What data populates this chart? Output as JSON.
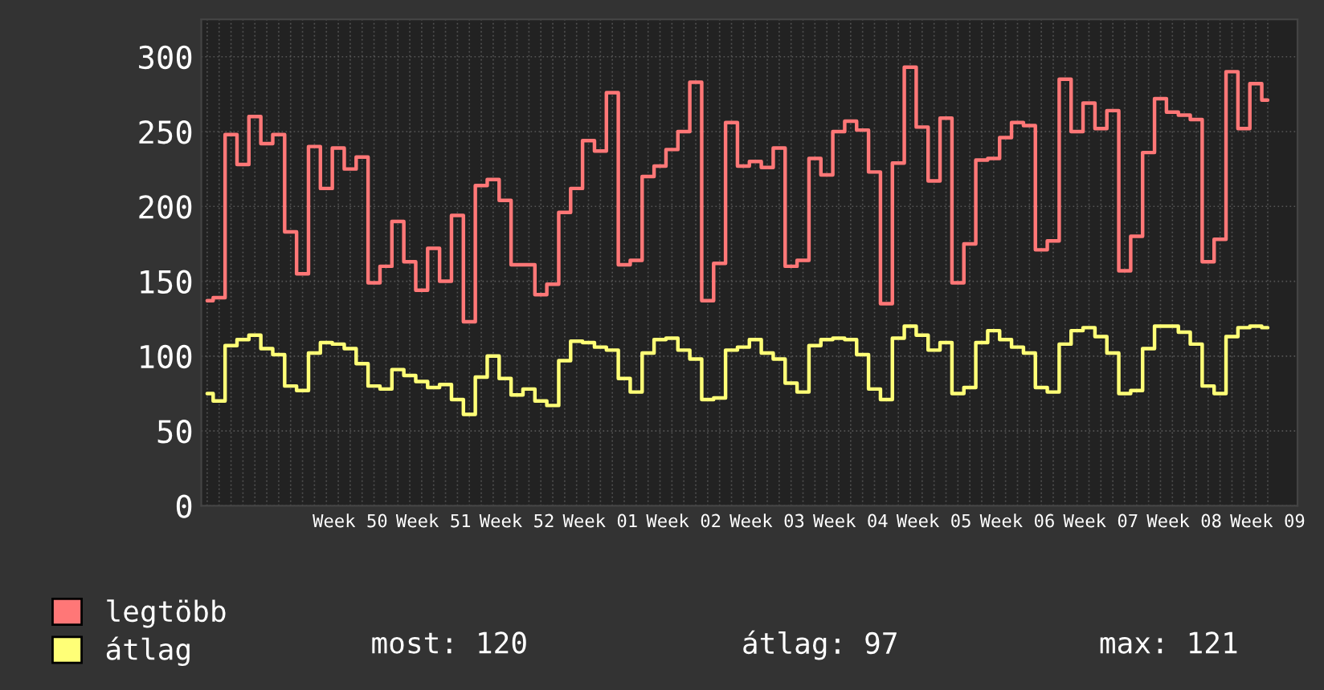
{
  "chart_data": {
    "type": "step",
    "categories": [
      null,
      null,
      null,
      null,
      null,
      null,
      null,
      null,
      null,
      null,
      null,
      null,
      "Week 50",
      null,
      null,
      null,
      null,
      null,
      null,
      "Week 51",
      null,
      null,
      null,
      null,
      null,
      null,
      "Week 52",
      null,
      null,
      null,
      null,
      null,
      null,
      "Week 01",
      null,
      null,
      null,
      null,
      null,
      null,
      "Week 02",
      null,
      null,
      null,
      null,
      null,
      null,
      "Week 03",
      null,
      null,
      null,
      null,
      null,
      null,
      "Week 04",
      null,
      null,
      null,
      null,
      null,
      null,
      "Week 05",
      null,
      null,
      null,
      null,
      null,
      null,
      "Week 06",
      null,
      null,
      null,
      null,
      null,
      null,
      "Week 07",
      null,
      null,
      null,
      null,
      null,
      null,
      "Week 08",
      null,
      null,
      null,
      null,
      null,
      null,
      "Week 09"
    ],
    "series": [
      {
        "name": "legtöbb",
        "color": "#ff7777",
        "values": [
          137,
          139,
          248,
          228,
          260,
          242,
          248,
          183,
          155,
          240,
          212,
          239,
          225,
          233,
          149,
          160,
          190,
          163,
          144,
          172,
          150,
          194,
          123,
          214,
          218,
          204,
          161,
          161,
          141,
          148,
          196,
          212,
          244,
          237,
          276,
          161,
          164,
          220,
          227,
          238,
          250,
          283,
          137,
          162,
          256,
          227,
          230,
          226,
          239,
          160,
          164,
          232,
          221,
          250,
          257,
          251,
          223,
          135,
          229,
          293,
          253,
          217,
          259,
          149,
          175,
          231,
          232,
          246,
          256,
          254,
          171,
          177,
          285,
          250,
          269,
          252,
          264,
          157,
          180,
          236,
          272,
          263,
          261,
          258,
          163,
          178,
          290,
          252,
          282,
          271
        ]
      },
      {
        "name": "átlag",
        "color": "#ffff77",
        "values": [
          75,
          70,
          107,
          111,
          114,
          105,
          101,
          80,
          77,
          102,
          109,
          108,
          105,
          95,
          80,
          78,
          91,
          87,
          83,
          79,
          81,
          71,
          61,
          86,
          100,
          85,
          74,
          78,
          70,
          67,
          97,
          110,
          109,
          106,
          104,
          85,
          76,
          102,
          111,
          112,
          104,
          98,
          71,
          72,
          104,
          106,
          111,
          102,
          98,
          82,
          76,
          107,
          111,
          112,
          111,
          101,
          78,
          71,
          112,
          120,
          114,
          104,
          109,
          75,
          79,
          109,
          117,
          111,
          106,
          102,
          79,
          76,
          108,
          117,
          119,
          113,
          102,
          75,
          77,
          105,
          120,
          120,
          116,
          108,
          80,
          75,
          113,
          119,
          120,
          119
        ]
      }
    ],
    "ylim": [
      0,
      325
    ],
    "yticks": [
      0,
      50,
      100,
      150,
      200,
      250,
      300
    ],
    "grid": true,
    "legend": "bottom",
    "line_style": "solid",
    "annotations": [
      "most: 120",
      "átlag: 97",
      "max: 121"
    ]
  }
}
